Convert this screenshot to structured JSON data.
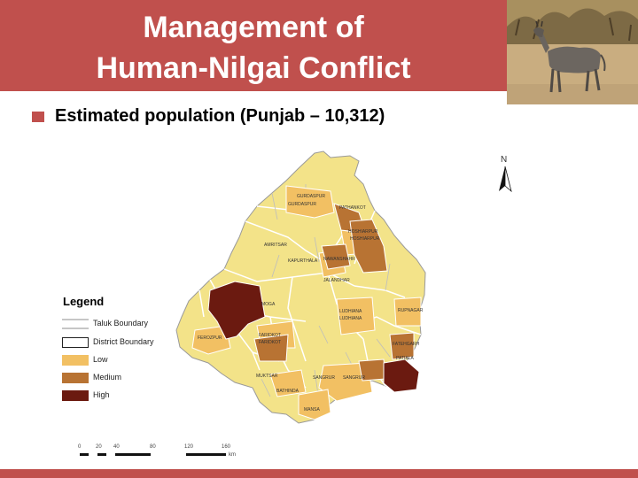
{
  "slide": {
    "title_line1": "Management of",
    "title_line2": "Human-Nilgai Conflict",
    "bullet": "Estimated population (Punjab – 10,312)"
  },
  "colors": {
    "header": "#c0504d",
    "low": "#f2c063",
    "medium": "#b87333",
    "high": "#6b1a10",
    "base": "#f3e389"
  },
  "legend": {
    "title": "Legend",
    "items": [
      {
        "label": "Taluk Boundary"
      },
      {
        "label": "District Boundary"
      },
      {
        "label": "Low"
      },
      {
        "label": "Medium"
      },
      {
        "label": "High"
      }
    ]
  },
  "north_label": "N",
  "scale": {
    "ticks": [
      "0",
      "20",
      "40",
      "80",
      "120",
      "160"
    ],
    "unit": "km"
  },
  "map_labels": {
    "gurdaspur_a": "GURDASPUR",
    "gurdaspur_b": "GURDASPUR",
    "pathankot": "PATHANKOT",
    "hoshiarpur_a": "HOSHIARPUR",
    "hoshiarpur_b": "HOSHIARPUR",
    "amritsar": "AMRITSAR",
    "kapurthala": "KAPURTHALA",
    "nawanshahr": "NAWANSHAHR",
    "jalandhar": "JALANDHAR",
    "ludhiana_a": "LUDHIANA",
    "ludhiana_b": "LUDHIANA",
    "rupnagar": "RUPNAGAR",
    "ferozpur_a": "FEROZPUR",
    "ferozpur_b": "FEROZPUR",
    "moga": "MOGA",
    "faridkot_a": "FARIDKOT",
    "faridkot_b": "FARIDKOT",
    "fatehgarh": "FATEHGARH",
    "patiala": "PATIALA",
    "muktsar": "MUKTSAR",
    "sangrur_a": "SANGRUR",
    "sangrur_b": "SANGRUR",
    "bathinda": "BATHINDA",
    "mansa": "MANSA"
  }
}
